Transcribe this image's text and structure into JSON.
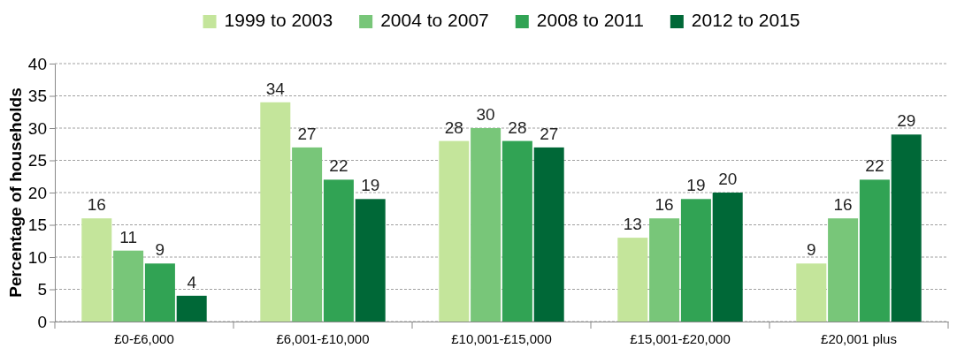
{
  "chart_data": {
    "type": "bar",
    "ylabel": "Percentage of households",
    "categories": [
      "£0-£6,000",
      "£6,001-£10,000",
      "£10,001-£15,000",
      "£15,001-£20,000",
      "£20,001 plus"
    ],
    "series": [
      {
        "name": "1999 to 2003",
        "color": "#c4e59b",
        "values": [
          16,
          34,
          28,
          13,
          9
        ]
      },
      {
        "name": "2004 to 2007",
        "color": "#78c679",
        "values": [
          11,
          27,
          30,
          16,
          16
        ]
      },
      {
        "name": "2008 to 2011",
        "color": "#31a354",
        "values": [
          9,
          22,
          28,
          19,
          22
        ]
      },
      {
        "name": "2012 to 2015",
        "color": "#006837",
        "values": [
          4,
          19,
          27,
          20,
          29
        ]
      }
    ],
    "ylim": [
      0,
      40
    ],
    "yticks": [
      0,
      5,
      10,
      15,
      20,
      25,
      30,
      35,
      40
    ],
    "grid": "y",
    "legend": "top",
    "data_labels": true
  }
}
